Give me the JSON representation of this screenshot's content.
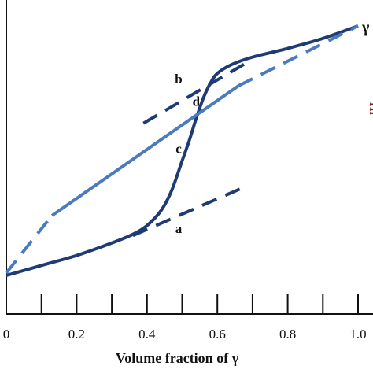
{
  "chart_data": {
    "type": "line",
    "xlabel": "Volume fraction of γ",
    "xlim": [
      0,
      1.0
    ],
    "ylim": [
      0,
      1.0
    ],
    "x_ticks": [
      0,
      0.1,
      0.2,
      0.3,
      0.4,
      0.5,
      0.6,
      0.7,
      0.8,
      0.9,
      1.0
    ],
    "x_tick_labels": [
      "0",
      "0.2",
      "0.4",
      "0.6",
      "0.8",
      "1.0"
    ],
    "x_tick_label_values": [
      0,
      0.2,
      0.4,
      0.6,
      0.8,
      1.0
    ],
    "endpoint_label": "γ",
    "right_axis_text": "Hi",
    "series": [
      {
        "style": "solid",
        "color": "#1f3b73",
        "x": [
          0,
          0.1,
          0.2,
          0.3,
          0.36,
          0.4,
          0.44,
          0.47,
          0.5,
          0.52,
          0.54,
          0.56,
          0.58,
          0.6,
          0.64,
          0.7,
          0.8,
          0.9,
          1.0
        ],
        "y": [
          0,
          0.04,
          0.08,
          0.13,
          0.165,
          0.2,
          0.26,
          0.34,
          0.46,
          0.54,
          0.63,
          0.71,
          0.77,
          0.81,
          0.845,
          0.875,
          0.91,
          0.95,
          1.0
        ]
      },
      {
        "style": "solid",
        "color": "#4a7bbf",
        "x": [
          0.13,
          0.66
        ],
        "y": [
          0.24,
          0.76
        ]
      },
      {
        "style": "dashed",
        "color": "#4a7bbf",
        "x": [
          0,
          0.13
        ],
        "y": [
          0.01,
          0.24
        ]
      },
      {
        "style": "dashed",
        "color": "#4a7bbf",
        "x": [
          0.66,
          1.0
        ],
        "y": [
          0.76,
          1.0
        ]
      },
      {
        "style": "dashed",
        "color": "#1f3b73",
        "x": [
          0.36,
          0.67
        ],
        "y": [
          0.16,
          0.35
        ]
      },
      {
        "style": "dashed",
        "color": "#1f3b73",
        "x": [
          0.39,
          0.68
        ],
        "y": [
          0.61,
          0.85
        ]
      }
    ],
    "annotations": [
      {
        "text": "a",
        "x": 0.49,
        "y": 0.17
      },
      {
        "text": "b",
        "x": 0.49,
        "y": 0.77
      },
      {
        "text": "c",
        "x": 0.49,
        "y": 0.49
      },
      {
        "text": "d",
        "x": 0.54,
        "y": 0.68
      }
    ],
    "grid": false
  }
}
